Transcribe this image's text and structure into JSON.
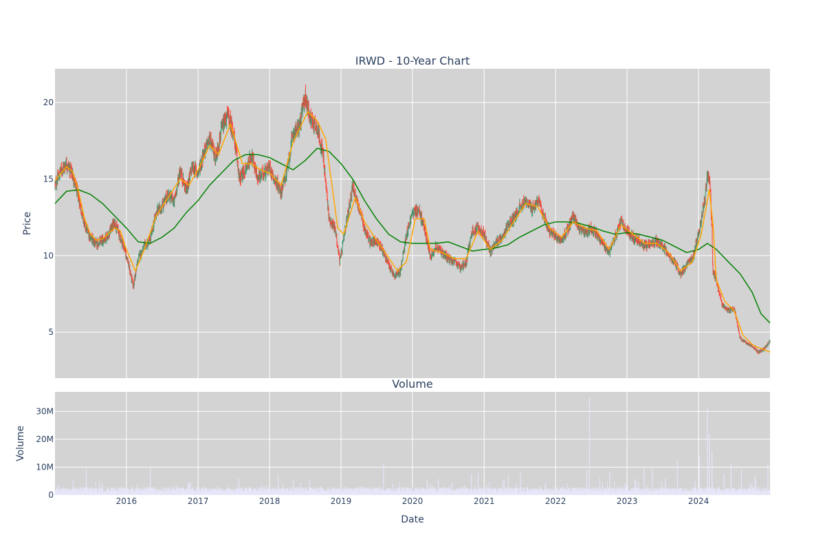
{
  "chart_data": [
    {
      "type": "candlestick",
      "title": "IRWD - 10-Year Chart",
      "xlabel": "",
      "ylabel": "Price",
      "ylim": [
        2,
        22.2
      ],
      "xlim": [
        "2015-01-01",
        "2024-12-31"
      ],
      "yticks": [
        5,
        10,
        15,
        20
      ],
      "colors": {
        "plot_bg": "#d3d3d3",
        "up": "#3d9970",
        "down": "#ff4136",
        "ma_short": "#ffa500",
        "ma_long": "#008000"
      },
      "price_points": [
        [
          "2015-01-02",
          14.6
        ],
        [
          "2015-02-01",
          15.6
        ],
        [
          "2015-03-01",
          16.0
        ],
        [
          "2015-04-01",
          15.3
        ],
        [
          "2015-05-01",
          13.8
        ],
        [
          "2015-06-01",
          12.0
        ],
        [
          "2015-07-01",
          11.2
        ],
        [
          "2015-08-01",
          10.7
        ],
        [
          "2015-09-01",
          11.0
        ],
        [
          "2015-10-01",
          11.4
        ],
        [
          "2015-11-01",
          12.2
        ],
        [
          "2015-12-01",
          11.2
        ],
        [
          "2016-01-01",
          10.0
        ],
        [
          "2016-02-05",
          8.0
        ],
        [
          "2016-03-01",
          9.8
        ],
        [
          "2016-04-01",
          10.6
        ],
        [
          "2016-05-01",
          11.0
        ],
        [
          "2016-06-01",
          12.8
        ],
        [
          "2016-07-01",
          13.2
        ],
        [
          "2016-08-01",
          14.0
        ],
        [
          "2016-09-01",
          13.5
        ],
        [
          "2016-10-01",
          15.6
        ],
        [
          "2016-11-01",
          14.2
        ],
        [
          "2016-12-01",
          15.8
        ],
        [
          "2017-01-01",
          15.4
        ],
        [
          "2017-02-01",
          16.8
        ],
        [
          "2017-03-01",
          17.6
        ],
        [
          "2017-04-01",
          16.4
        ],
        [
          "2017-05-01",
          18.2
        ],
        [
          "2017-06-01",
          19.2
        ],
        [
          "2017-07-01",
          18.0
        ],
        [
          "2017-08-01",
          15.0
        ],
        [
          "2017-09-01",
          15.6
        ],
        [
          "2017-10-01",
          16.6
        ],
        [
          "2017-11-01",
          15.0
        ],
        [
          "2017-12-01",
          15.4
        ],
        [
          "2018-01-01",
          15.8
        ],
        [
          "2018-02-01",
          14.8
        ],
        [
          "2018-03-01",
          14.2
        ],
        [
          "2018-04-01",
          15.6
        ],
        [
          "2018-05-01",
          18.0
        ],
        [
          "2018-06-01",
          18.4
        ],
        [
          "2018-07-01",
          20.4
        ],
        [
          "2018-08-01",
          18.8
        ],
        [
          "2018-09-01",
          18.4
        ],
        [
          "2018-10-01",
          16.6
        ],
        [
          "2018-11-01",
          12.4
        ],
        [
          "2018-12-01",
          11.8
        ],
        [
          "2018-12-26",
          9.6
        ],
        [
          "2019-02-01",
          12.4
        ],
        [
          "2019-03-01",
          14.6
        ],
        [
          "2019-04-01",
          13.2
        ],
        [
          "2019-05-01",
          11.8
        ],
        [
          "2019-06-01",
          10.8
        ],
        [
          "2019-07-01",
          11.0
        ],
        [
          "2019-08-01",
          10.4
        ],
        [
          "2019-09-01",
          9.4
        ],
        [
          "2019-10-01",
          8.6
        ],
        [
          "2019-11-01",
          9.0
        ],
        [
          "2019-12-01",
          11.4
        ],
        [
          "2020-01-01",
          12.8
        ],
        [
          "2020-02-01",
          13.0
        ],
        [
          "2020-03-01",
          11.8
        ],
        [
          "2020-04-01",
          10.0
        ],
        [
          "2020-05-01",
          10.6
        ],
        [
          "2020-06-01",
          10.2
        ],
        [
          "2020-07-01",
          9.8
        ],
        [
          "2020-08-01",
          9.6
        ],
        [
          "2020-09-01",
          9.2
        ],
        [
          "2020-10-01",
          9.6
        ],
        [
          "2020-11-01",
          11.6
        ],
        [
          "2020-12-01",
          11.8
        ],
        [
          "2021-01-01",
          11.4
        ],
        [
          "2021-02-01",
          10.2
        ],
        [
          "2021-03-01",
          10.8
        ],
        [
          "2021-04-01",
          11.2
        ],
        [
          "2021-05-01",
          12.0
        ],
        [
          "2021-06-01",
          12.4
        ],
        [
          "2021-07-01",
          13.2
        ],
        [
          "2021-08-01",
          13.6
        ],
        [
          "2021-09-01",
          13.0
        ],
        [
          "2021-10-01",
          13.6
        ],
        [
          "2021-11-01",
          12.6
        ],
        [
          "2021-12-01",
          11.6
        ],
        [
          "2022-01-01",
          11.2
        ],
        [
          "2022-02-01",
          11.0
        ],
        [
          "2022-03-01",
          11.6
        ],
        [
          "2022-04-01",
          12.6
        ],
        [
          "2022-05-01",
          11.8
        ],
        [
          "2022-06-01",
          11.4
        ],
        [
          "2022-07-01",
          11.8
        ],
        [
          "2022-08-01",
          11.4
        ],
        [
          "2022-09-01",
          10.8
        ],
        [
          "2022-10-01",
          10.2
        ],
        [
          "2022-11-01",
          11.2
        ],
        [
          "2022-12-01",
          12.2
        ],
        [
          "2023-01-01",
          11.6
        ],
        [
          "2023-02-01",
          11.2
        ],
        [
          "2023-03-01",
          11.0
        ],
        [
          "2023-04-01",
          10.6
        ],
        [
          "2023-05-01",
          10.8
        ],
        [
          "2023-06-01",
          11.0
        ],
        [
          "2023-07-01",
          10.6
        ],
        [
          "2023-08-01",
          10.0
        ],
        [
          "2023-09-01",
          9.6
        ],
        [
          "2023-10-01",
          8.8
        ],
        [
          "2023-11-01",
          9.4
        ],
        [
          "2023-12-01",
          9.8
        ],
        [
          "2024-01-01",
          11.4
        ],
        [
          "2024-02-01",
          13.6
        ],
        [
          "2024-02-15",
          15.2
        ],
        [
          "2024-03-01",
          14.6
        ],
        [
          "2024-03-15",
          9.0
        ],
        [
          "2024-04-01",
          8.4
        ],
        [
          "2024-05-01",
          6.8
        ],
        [
          "2024-06-01",
          6.4
        ],
        [
          "2024-07-01",
          6.6
        ],
        [
          "2024-08-01",
          4.6
        ],
        [
          "2024-09-01",
          4.3
        ],
        [
          "2024-10-01",
          4.1
        ],
        [
          "2024-11-01",
          3.7
        ],
        [
          "2024-12-01",
          3.9
        ],
        [
          "2024-12-31",
          4.4
        ]
      ],
      "ma_short_points": [
        [
          "2015-01-01",
          14.9
        ],
        [
          "2015-03-01",
          15.8
        ],
        [
          "2015-04-01",
          15.5
        ],
        [
          "2015-05-01",
          14.2
        ],
        [
          "2015-06-01",
          12.4
        ],
        [
          "2015-07-01",
          11.4
        ],
        [
          "2015-08-01",
          11.0
        ],
        [
          "2015-09-01",
          11.1
        ],
        [
          "2015-11-01",
          11.8
        ],
        [
          "2015-12-01",
          11.6
        ],
        [
          "2016-01-01",
          10.4
        ],
        [
          "2016-02-15",
          9.0
        ],
        [
          "2016-04-01",
          10.4
        ],
        [
          "2016-06-01",
          12.6
        ],
        [
          "2016-08-01",
          13.8
        ],
        [
          "2016-10-01",
          15.0
        ],
        [
          "2016-11-15",
          14.6
        ],
        [
          "2017-01-01",
          15.6
        ],
        [
          "2017-03-01",
          17.2
        ],
        [
          "2017-04-15",
          16.6
        ],
        [
          "2017-06-15",
          18.6
        ],
        [
          "2017-08-15",
          16.0
        ],
        [
          "2017-10-01",
          16.0
        ],
        [
          "2017-11-15",
          15.6
        ],
        [
          "2018-01-01",
          15.4
        ],
        [
          "2018-03-01",
          14.6
        ],
        [
          "2018-05-01",
          17.4
        ],
        [
          "2018-07-15",
          19.4
        ],
        [
          "2018-09-01",
          18.8
        ],
        [
          "2018-10-15",
          17.6
        ],
        [
          "2018-12-15",
          11.8
        ],
        [
          "2019-01-15",
          11.4
        ],
        [
          "2019-03-15",
          13.8
        ],
        [
          "2019-05-01",
          12.2
        ],
        [
          "2019-07-01",
          11.0
        ],
        [
          "2019-08-15",
          10.2
        ],
        [
          "2019-10-15",
          9.0
        ],
        [
          "2019-12-01",
          9.6
        ],
        [
          "2020-01-15",
          12.4
        ],
        [
          "2020-03-01",
          12.4
        ],
        [
          "2020-04-01",
          10.4
        ],
        [
          "2020-06-01",
          10.2
        ],
        [
          "2020-08-01",
          9.8
        ],
        [
          "2020-10-01",
          9.8
        ],
        [
          "2020-12-01",
          11.6
        ],
        [
          "2021-02-01",
          10.4
        ],
        [
          "2021-04-01",
          11.0
        ],
        [
          "2021-06-01",
          12.2
        ],
        [
          "2021-08-01",
          13.4
        ],
        [
          "2021-10-01",
          13.2
        ],
        [
          "2021-12-01",
          11.8
        ],
        [
          "2022-02-01",
          11.2
        ],
        [
          "2022-04-01",
          12.2
        ],
        [
          "2022-06-01",
          11.8
        ],
        [
          "2022-08-01",
          11.6
        ],
        [
          "2022-10-01",
          10.4
        ],
        [
          "2022-12-01",
          12.0
        ],
        [
          "2023-02-01",
          11.4
        ],
        [
          "2023-04-01",
          10.8
        ],
        [
          "2023-06-01",
          10.8
        ],
        [
          "2023-08-01",
          10.2
        ],
        [
          "2023-10-01",
          9.0
        ],
        [
          "2023-12-01",
          9.6
        ],
        [
          "2024-01-15",
          11.4
        ],
        [
          "2024-02-25",
          14.3
        ],
        [
          "2024-03-15",
          12.0
        ],
        [
          "2024-04-01",
          8.4
        ],
        [
          "2024-05-15",
          7.0
        ],
        [
          "2024-07-01",
          6.4
        ],
        [
          "2024-08-15",
          4.8
        ],
        [
          "2024-10-01",
          4.2
        ],
        [
          "2024-11-01",
          4.0
        ],
        [
          "2024-12-31",
          3.7
        ]
      ],
      "ma_long_points": [
        [
          "2015-01-01",
          13.4
        ],
        [
          "2015-03-01",
          14.2
        ],
        [
          "2015-05-01",
          14.3
        ],
        [
          "2015-07-01",
          14.0
        ],
        [
          "2015-09-01",
          13.4
        ],
        [
          "2015-11-01",
          12.6
        ],
        [
          "2016-01-01",
          11.8
        ],
        [
          "2016-03-01",
          10.9
        ],
        [
          "2016-05-01",
          10.8
        ],
        [
          "2016-07-01",
          11.2
        ],
        [
          "2016-09-01",
          11.8
        ],
        [
          "2016-11-01",
          12.8
        ],
        [
          "2017-01-01",
          13.6
        ],
        [
          "2017-03-01",
          14.6
        ],
        [
          "2017-05-01",
          15.4
        ],
        [
          "2017-07-01",
          16.2
        ],
        [
          "2017-09-01",
          16.6
        ],
        [
          "2017-11-01",
          16.6
        ],
        [
          "2018-01-01",
          16.4
        ],
        [
          "2018-03-01",
          16.0
        ],
        [
          "2018-05-01",
          15.6
        ],
        [
          "2018-07-01",
          16.2
        ],
        [
          "2018-09-01",
          17.0
        ],
        [
          "2018-11-01",
          16.8
        ],
        [
          "2019-01-01",
          16.0
        ],
        [
          "2019-03-01",
          15.0
        ],
        [
          "2019-05-01",
          13.6
        ],
        [
          "2019-07-01",
          12.4
        ],
        [
          "2019-09-01",
          11.4
        ],
        [
          "2019-11-01",
          10.9
        ],
        [
          "2020-01-01",
          10.8
        ],
        [
          "2020-03-01",
          10.8
        ],
        [
          "2020-05-01",
          10.8
        ],
        [
          "2020-07-01",
          10.9
        ],
        [
          "2020-09-01",
          10.6
        ],
        [
          "2020-11-01",
          10.3
        ],
        [
          "2021-01-01",
          10.4
        ],
        [
          "2021-03-01",
          10.5
        ],
        [
          "2021-05-01",
          10.7
        ],
        [
          "2021-07-01",
          11.2
        ],
        [
          "2021-09-01",
          11.6
        ],
        [
          "2021-11-01",
          12.0
        ],
        [
          "2022-01-01",
          12.2
        ],
        [
          "2022-03-01",
          12.2
        ],
        [
          "2022-05-01",
          12.1
        ],
        [
          "2022-07-01",
          11.9
        ],
        [
          "2022-09-01",
          11.6
        ],
        [
          "2022-11-01",
          11.4
        ],
        [
          "2023-01-01",
          11.5
        ],
        [
          "2023-03-01",
          11.4
        ],
        [
          "2023-05-01",
          11.2
        ],
        [
          "2023-07-01",
          11.0
        ],
        [
          "2023-09-01",
          10.6
        ],
        [
          "2023-11-01",
          10.2
        ],
        [
          "2024-01-01",
          10.4
        ],
        [
          "2024-02-15",
          10.8
        ],
        [
          "2024-04-01",
          10.4
        ],
        [
          "2024-06-01",
          9.6
        ],
        [
          "2024-08-01",
          8.8
        ],
        [
          "2024-10-01",
          7.6
        ],
        [
          "2024-11-15",
          6.2
        ],
        [
          "2024-12-31",
          5.6
        ]
      ]
    },
    {
      "type": "bar",
      "title": "Volume",
      "xlabel": "Date",
      "ylabel": "Volume",
      "ylim": [
        0,
        37000000
      ],
      "yticks": [
        0,
        10000000,
        20000000,
        30000000
      ],
      "ytick_labels": [
        "0",
        "10M",
        "20M",
        "30M"
      ],
      "xtick_labels": [
        "2016",
        "2017",
        "2018",
        "2019",
        "2020",
        "2021",
        "2022",
        "2023",
        "2024"
      ],
      "colors": {
        "bar": "#e6e6fa",
        "plot_bg": "#d3d3d3"
      },
      "baseline_volume": 1800000,
      "spikes": [
        [
          "2015-06-10",
          9500000
        ],
        [
          "2016-05-02",
          9800000
        ],
        [
          "2017-07-28",
          6000000
        ],
        [
          "2018-02-14",
          7200000
        ],
        [
          "2019-08-06",
          11500000
        ],
        [
          "2020-03-16",
          5500000
        ],
        [
          "2020-05-12",
          5800000
        ],
        [
          "2020-10-28",
          7500000
        ],
        [
          "2020-12-01",
          7800000
        ],
        [
          "2021-05-05",
          7200000
        ],
        [
          "2021-07-05",
          8000000
        ],
        [
          "2022-06-10",
          9000000
        ],
        [
          "2022-06-23",
          35000000
        ],
        [
          "2022-08-15",
          6000000
        ],
        [
          "2022-10-05",
          8500000
        ],
        [
          "2023-02-10",
          5800000
        ],
        [
          "2023-03-29",
          10000000
        ],
        [
          "2023-05-10",
          9500000
        ],
        [
          "2023-07-15",
          6000000
        ],
        [
          "2023-09-15",
          13000000
        ],
        [
          "2023-12-15",
          5000000
        ],
        [
          "2024-01-05",
          14000000
        ],
        [
          "2024-02-15",
          31000000
        ],
        [
          "2024-02-25",
          22000000
        ],
        [
          "2024-03-10",
          16000000
        ],
        [
          "2024-05-10",
          7500000
        ],
        [
          "2024-06-15",
          11500000
        ],
        [
          "2024-08-07",
          9000000
        ],
        [
          "2024-10-15",
          7000000
        ],
        [
          "2024-12-20",
          11000000
        ]
      ]
    }
  ]
}
